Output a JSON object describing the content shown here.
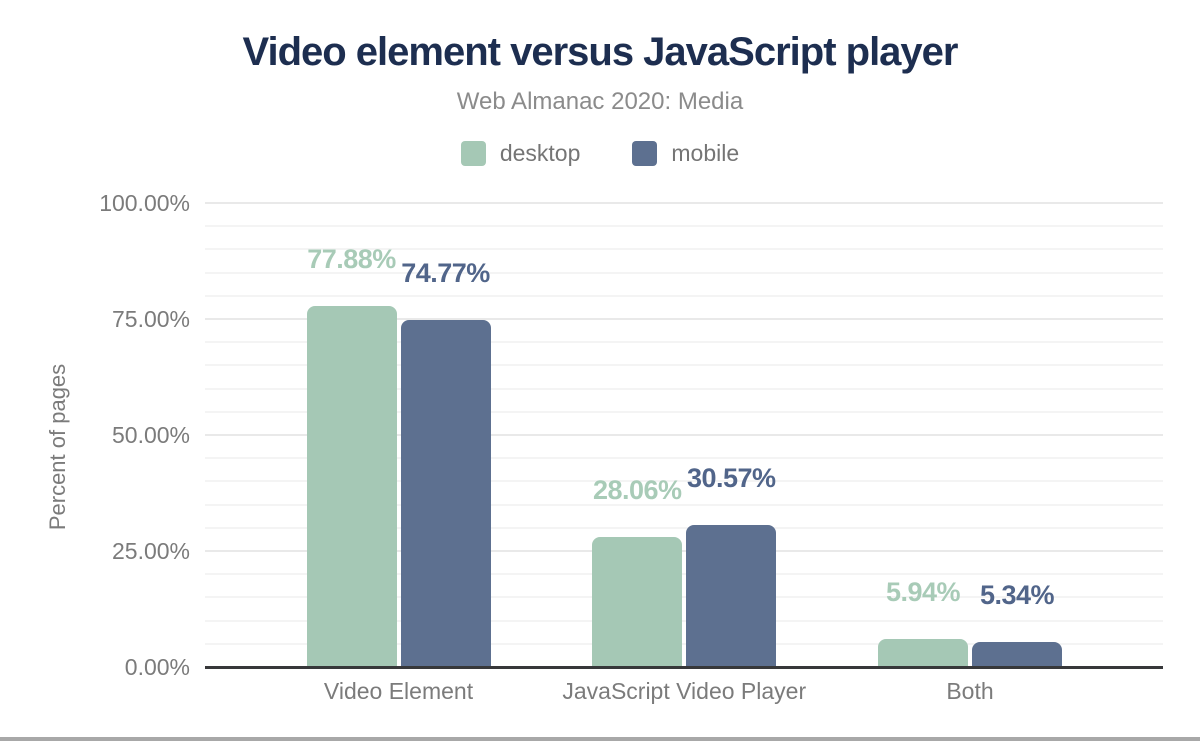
{
  "title": "Video element versus JavaScript player",
  "subtitle": "Web Almanac 2020: Media",
  "legend": {
    "items": [
      {
        "label": "desktop",
        "color": "#a5c8b5"
      },
      {
        "label": "mobile",
        "color": "#5d7090"
      }
    ]
  },
  "y_axis": {
    "title": "Percent of pages",
    "tick_labels": [
      "0.00%",
      "25.00%",
      "50.00%",
      "75.00%",
      "100.00%"
    ]
  },
  "colors": {
    "title": "#1d2e50",
    "subtitle": "#8b8b8b",
    "axis_text": "#7b7b7b",
    "grid_major": "#e9e9e9",
    "grid_minor": "#f4f4f4",
    "zero_line": "#37383a",
    "page_edge": "#a8a8a8"
  },
  "chart_data": {
    "type": "bar",
    "title": "Video element versus JavaScript player",
    "subtitle": "Web Almanac 2020: Media",
    "categories": [
      "Video Element",
      "JavaScript Video Player",
      "Both"
    ],
    "series": [
      {
        "name": "desktop",
        "color": "#a5c8b5",
        "label_color": "#a8cbb7",
        "values": [
          77.88,
          28.06,
          5.94
        ],
        "data_labels": [
          "77.88%",
          "28.06%",
          "5.94%"
        ]
      },
      {
        "name": "mobile",
        "color": "#5d7090",
        "label_color": "#51658a",
        "values": [
          74.77,
          30.57,
          5.34
        ],
        "data_labels": [
          "74.77%",
          "30.57%",
          "5.34%"
        ]
      }
    ],
    "xlabel": "",
    "ylabel": "Percent of pages",
    "ylim": [
      0,
      100
    ],
    "y_major_step": 25,
    "y_minor_step": 5,
    "legend_position": "top",
    "grid": true
  }
}
